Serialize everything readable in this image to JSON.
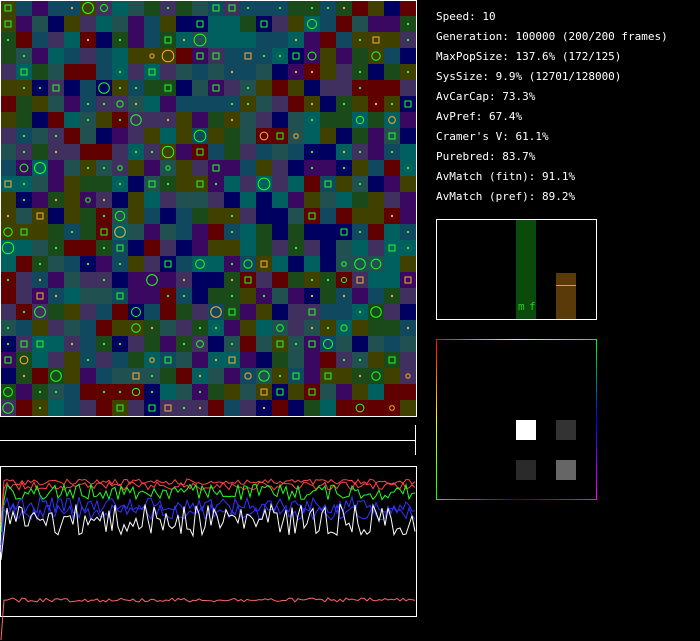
{
  "stats": [
    "Speed: 10",
    "Generation: 100000 (200/200 frames)",
    "MaxPopSize: 137.6% (172/125)",
    "SysSize: 9.9% (12701/128000)",
    "AvCarCap: 73.3%",
    "AvPref: 67.4%",
    "Cramer's V: 61.1%",
    "Purebred: 83.7%",
    "AvMatch (fitn): 91.1%",
    "AvMatch (pref): 89.2%"
  ],
  "bar_labels": [
    "m",
    "f"
  ]
}
